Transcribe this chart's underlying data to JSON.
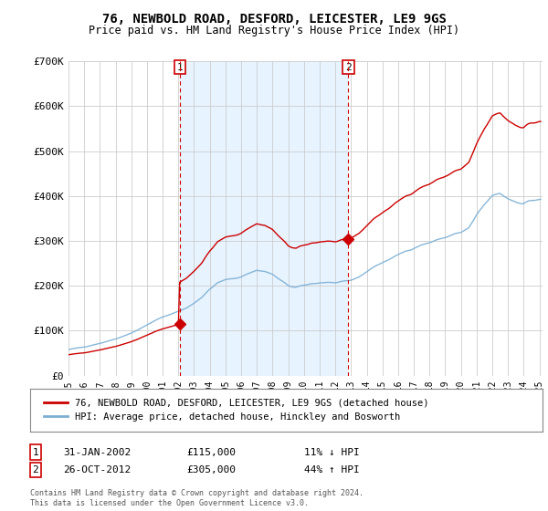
{
  "title": "76, NEWBOLD ROAD, DESFORD, LEICESTER, LE9 9GS",
  "subtitle": "Price paid vs. HM Land Registry's House Price Index (HPI)",
  "ylim": [
    0,
    700000
  ],
  "yticks": [
    0,
    100000,
    200000,
    300000,
    400000,
    500000,
    600000,
    700000
  ],
  "ytick_labels": [
    "£0",
    "£100K",
    "£200K",
    "£300K",
    "£400K",
    "£500K",
    "£600K",
    "£700K"
  ],
  "purchase1_year": 2002.08,
  "purchase1_price": 115000,
  "purchase2_year": 2012.83,
  "purchase2_price": 305000,
  "legend_line1": "76, NEWBOLD ROAD, DESFORD, LEICESTER, LE9 9GS (detached house)",
  "legend_line2": "HPI: Average price, detached house, Hinckley and Bosworth",
  "table_row1_date": "31-JAN-2002",
  "table_row1_price": "£115,000",
  "table_row1_hpi": "11% ↓ HPI",
  "table_row2_date": "26-OCT-2012",
  "table_row2_price": "£305,000",
  "table_row2_hpi": "44% ↑ HPI",
  "footnote": "Contains HM Land Registry data © Crown copyright and database right 2024.\nThis data is licensed under the Open Government Licence v3.0.",
  "price_line_color": "#cc0000",
  "hpi_line_color": "#7bafd4",
  "shade_color": "#ddeeff",
  "vline_color": "#cc0000",
  "background_color": "#ffffff",
  "grid_color": "#cccccc",
  "box_color": "#cc0000"
}
